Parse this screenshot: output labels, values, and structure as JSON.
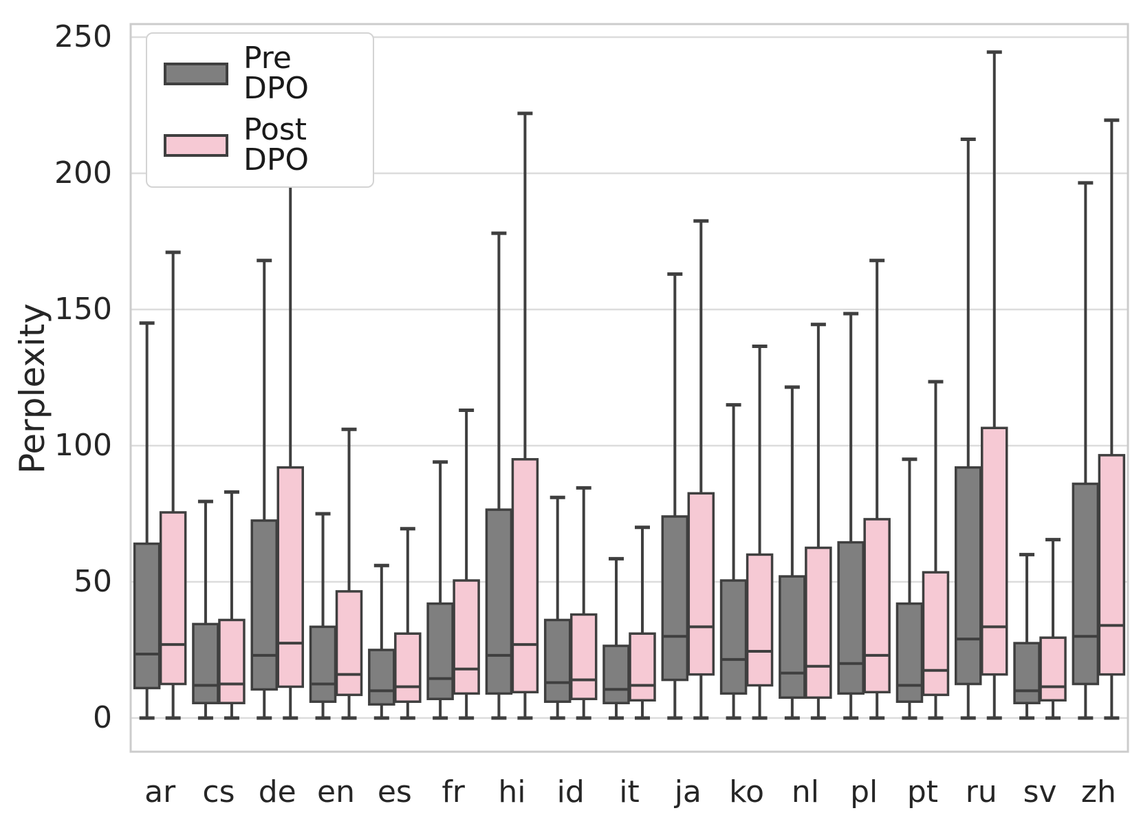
{
  "chart_data": {
    "type": "boxplot",
    "title": "",
    "xlabel": "",
    "ylabel": "Perplexity",
    "yticks": [
      0,
      50,
      100,
      150,
      200,
      250
    ],
    "ylim": [
      -12.5,
      255
    ],
    "grid": true,
    "legend_position": "upper left",
    "categories": [
      "ar",
      "cs",
      "de",
      "en",
      "es",
      "fr",
      "hi",
      "id",
      "it",
      "ja",
      "ko",
      "nl",
      "pl",
      "pt",
      "ru",
      "sv",
      "zh"
    ],
    "series": [
      {
        "name": "Pre DPO",
        "color": "#7f7f7f",
        "boxes": [
          {
            "lo": 0,
            "q1": 11,
            "median": 23.5,
            "q3": 64,
            "hi": 145
          },
          {
            "lo": 0,
            "q1": 5.5,
            "median": 12,
            "q3": 34.5,
            "hi": 79.5
          },
          {
            "lo": 0,
            "q1": 10.5,
            "median": 23,
            "q3": 72.5,
            "hi": 168
          },
          {
            "lo": 0,
            "q1": 6,
            "median": 12.5,
            "q3": 33.5,
            "hi": 75
          },
          {
            "lo": 0,
            "q1": 5,
            "median": 10,
            "q3": 25,
            "hi": 56
          },
          {
            "lo": 0,
            "q1": 7,
            "median": 14.5,
            "q3": 42,
            "hi": 94
          },
          {
            "lo": 0,
            "q1": 9,
            "median": 23,
            "q3": 76.5,
            "hi": 178
          },
          {
            "lo": 0,
            "q1": 6,
            "median": 13,
            "q3": 36,
            "hi": 81
          },
          {
            "lo": 0,
            "q1": 5.5,
            "median": 10.5,
            "q3": 26.5,
            "hi": 58.5
          },
          {
            "lo": 0,
            "q1": 14,
            "median": 30,
            "q3": 74,
            "hi": 163
          },
          {
            "lo": 0,
            "q1": 9,
            "median": 21.5,
            "q3": 50.5,
            "hi": 115
          },
          {
            "lo": 0,
            "q1": 7.5,
            "median": 16.5,
            "q3": 52,
            "hi": 121.5
          },
          {
            "lo": 0,
            "q1": 9,
            "median": 20,
            "q3": 64.5,
            "hi": 148.5
          },
          {
            "lo": 0,
            "q1": 6,
            "median": 12,
            "q3": 42,
            "hi": 95
          },
          {
            "lo": 0,
            "q1": 12.5,
            "median": 29,
            "q3": 92,
            "hi": 212.5
          },
          {
            "lo": 0,
            "q1": 5.5,
            "median": 10,
            "q3": 27.5,
            "hi": 60
          },
          {
            "lo": 0,
            "q1": 12.5,
            "median": 30,
            "q3": 86,
            "hi": 196.5
          }
        ]
      },
      {
        "name": "Post DPO",
        "color": "#f6c9d4",
        "boxes": [
          {
            "lo": 0,
            "q1": 12.5,
            "median": 27,
            "q3": 75.5,
            "hi": 171
          },
          {
            "lo": 0,
            "q1": 5.5,
            "median": 12.5,
            "q3": 36,
            "hi": 83
          },
          {
            "lo": 0,
            "q1": 11.5,
            "median": 27.5,
            "q3": 92,
            "hi": 213.5
          },
          {
            "lo": 0,
            "q1": 8.5,
            "median": 16,
            "q3": 46.5,
            "hi": 106
          },
          {
            "lo": 0,
            "q1": 6,
            "median": 11.5,
            "q3": 31,
            "hi": 69.5
          },
          {
            "lo": 0,
            "q1": 9,
            "median": 18,
            "q3": 50.5,
            "hi": 113
          },
          {
            "lo": 0,
            "q1": 9.5,
            "median": 27,
            "q3": 95,
            "hi": 222
          },
          {
            "lo": 0,
            "q1": 7,
            "median": 14,
            "q3": 38,
            "hi": 84.5
          },
          {
            "lo": 0,
            "q1": 6.5,
            "median": 12,
            "q3": 31,
            "hi": 70
          },
          {
            "lo": 0,
            "q1": 16,
            "median": 33.5,
            "q3": 82.5,
            "hi": 182.5
          },
          {
            "lo": 0,
            "q1": 12,
            "median": 24.5,
            "q3": 60,
            "hi": 136.5
          },
          {
            "lo": 0,
            "q1": 7.5,
            "median": 19,
            "q3": 62.5,
            "hi": 144.5
          },
          {
            "lo": 0,
            "q1": 9.5,
            "median": 23,
            "q3": 73,
            "hi": 168
          },
          {
            "lo": 0,
            "q1": 8.5,
            "median": 17.5,
            "q3": 53.5,
            "hi": 123.5
          },
          {
            "lo": 0,
            "q1": 16,
            "median": 33.5,
            "q3": 106.5,
            "hi": 244.5
          },
          {
            "lo": 0,
            "q1": 6.5,
            "median": 11.5,
            "q3": 29.5,
            "hi": 65.5
          },
          {
            "lo": 0,
            "q1": 16,
            "median": 34,
            "q3": 96.5,
            "hi": 219.5
          }
        ]
      }
    ],
    "colors": {
      "pre_fill": "#7f7f7f",
      "post_fill": "#f6c9d4",
      "box_edge": "#3f3f3f",
      "gridline": "#dcdcdc",
      "spine": "#cccccc",
      "tick_text": "#262626"
    },
    "legend": {
      "pre_label": "Pre DPO",
      "post_label": "Post DPO"
    }
  }
}
